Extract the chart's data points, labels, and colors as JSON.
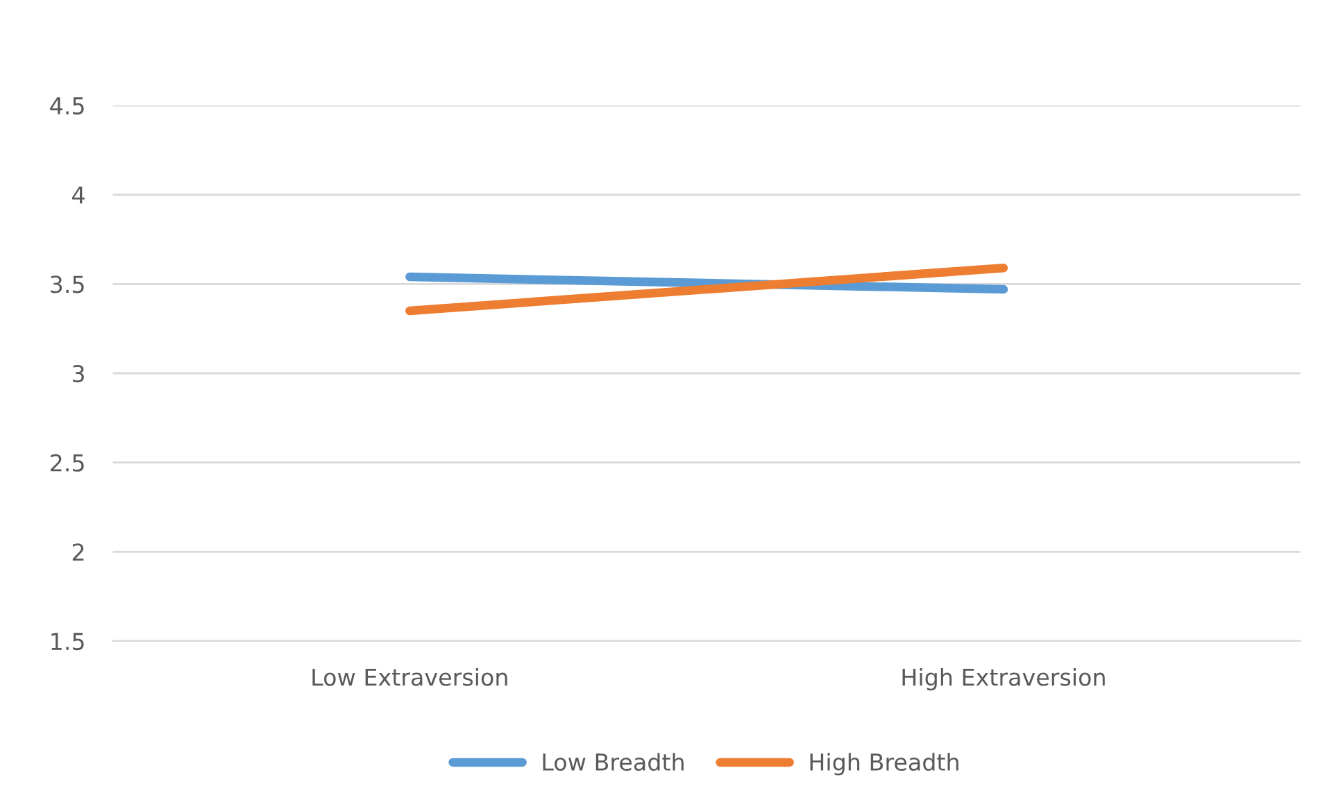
{
  "chart_data": {
    "type": "line",
    "categories": [
      "Low Extraversion",
      "High Extraversion"
    ],
    "series": [
      {
        "name": "Low Breadth",
        "color": "#5b9bd5",
        "values": [
          3.54,
          3.47
        ]
      },
      {
        "name": "High Breadth",
        "color": "#ed7d31",
        "values": [
          3.35,
          3.59
        ]
      }
    ],
    "ylim": [
      1.5,
      4.5
    ],
    "yticks": [
      1.5,
      2,
      2.5,
      3,
      3.5,
      4,
      4.5
    ],
    "grid": "y",
    "legend": "bottom",
    "marker": "none",
    "line_style": "solid"
  }
}
